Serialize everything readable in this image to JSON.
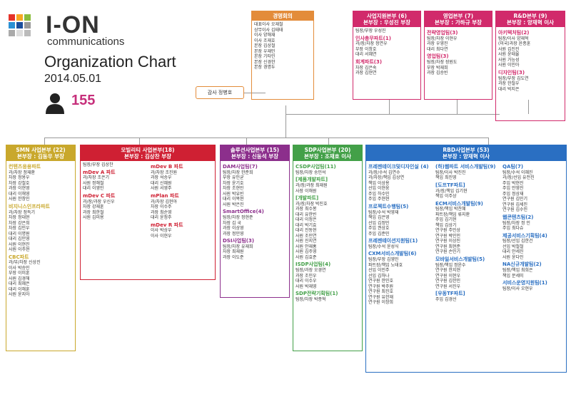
{
  "brand": {
    "name": "I-ON",
    "sub": "communications"
  },
  "title": "Organization Chart",
  "date": "2014.05.01",
  "headcount": "155",
  "colors": {
    "orange": "#e38c3a",
    "pink": "#d12a6b",
    "olive": "#c9a82c",
    "red": "#cf2033",
    "purple": "#8c2f8c",
    "green": "#43a048",
    "blue": "#2a6fc2"
  },
  "ceo": {
    "title": "경영회의",
    "lines": [
      "대표이사 오재철",
      "상무이사 김태태",
      "이사 양해재",
      "이사 조재호",
      "본장 김상철",
      "본장 우재민",
      "본장 기타민",
      "본장 신경한",
      "본장 경명두"
    ]
  },
  "audit": "감사 정병호",
  "support": {
    "title": "사업지원본부 (6)",
    "sub": "본부장 : 우성진 부장",
    "lines": [
      "팀장/부장 우성진",
      "인사총무파트(1)",
      "과/장/차장 정연우",
      "부장 이창호",
      "대리 서혜연",
      "회계파트(3)",
      "차장 김은숙",
      "과장 김현연"
    ]
  },
  "sales": {
    "title": "영업본부 (7)",
    "sub": "본부장 : 가하규 부장",
    "lines": [
      "전략영업팀(3)",
      "팀장/차장 이현우",
      "과장 우영진",
      "대리 최다연",
      "영업팀(3)",
      "팀장/차장 장원도",
      "부장 박재희",
      "과장 김승빈"
    ]
  },
  "rnd": {
    "title": "R&D본부 (9)",
    "sub": "본부장 : 양재혁 이사",
    "lines": [
      "아키텍처팀(2)",
      "팀장/이사 양재혁",
      "(미국)과장 윤종훈",
      "사원 김진진",
      "사원 윤태율",
      "사원 가능성",
      "사원 이민아",
      "디자인팀(3)",
      "팀장/부장 김도연",
      "과장 한철우",
      "대리 박지은"
    ]
  },
  "smn": {
    "title": "SMN 사업본부 (22)",
    "sub": "본부장 : 김동우 부장",
    "lines": [
      "컨텐츠응용파트",
      "과/차장 정재환",
      "차장 정용우",
      "차장 강철호",
      "과장 이현영",
      "대리 이해영",
      "사원 한창민",
      "비지니스인프라파트",
      "과/차장 정득기",
      "차장 정대현",
      "차장 강은희",
      "차장 김민우",
      "대리 이명원",
      "대리 김민영",
      "사원 이현진",
      "사원 이주현",
      "CBC파트",
      "과/부/차장 신상진",
      "이사 박승민",
      "부장 이미훈",
      "사원 김경해",
      "대리 최혜은",
      "대리 이해훈",
      "사원 윤지아"
    ]
  },
  "mobility": {
    "title": "모빌리티 사업본부(18)",
    "sub": "본부장 : 김상찬 부장",
    "c1": [
      "팀장/부장 김상찬",
      "mDev A 파트",
      "과/차장 조은기",
      "사원 정해철",
      "대리 이영민",
      "mDev C 파트",
      "과/장/과장 우신우",
      "차장 강재훈",
      "과장 최한철",
      "사원 김미용"
    ],
    "c2": [
      "mDev B 파트",
      "과/차장 조진원",
      "과장 석승우",
      "대리 신혜원",
      "사원 서영주",
      "mPlan 파트",
      "과/차장 김현아",
      "차장 이수주",
      "과장 최순영",
      "대리 윤정주",
      "mDev R 파트",
      "이사 박상우",
      "이사 이현우"
    ]
  },
  "solution": {
    "title": "솔루션사업본부 (15)",
    "sub": "본부장 : 신동석 부장",
    "lines": [
      "DAM사업팀(7)",
      "팀장/차장 한준희",
      "부장 유인균",
      "차장 윤기호",
      "차장 조현민",
      "사원 박유빈",
      "대리 이목현",
      "사원 박은진",
      "SmartOffice(4)",
      "팀장/차장 정현준",
      "차장 김 국",
      "과장 이상영",
      "과장 정민영",
      "DSI사업팀(3)",
      "팀장/차장 유재희",
      "차장 최재원",
      "과장 이도준"
    ]
  },
  "sdp": {
    "title": "SDP사업본부 (20)",
    "sub": "본부장 : 조재호 이사",
    "lines": [
      "CSDP사업팀(11)",
      "팀장/차장 송민석",
      "[제품개발파트]",
      "과/장/과장 최재원",
      "사장 이해원",
      "[개발파트]",
      "과/장/차장 박진호",
      "과장 최수봉",
      "대리 유한빈",
      "대리 이정은",
      "대리 박기효",
      "대리 진동현",
      "사원 조민연",
      "사원 진지연",
      "사원 안재홍",
      "사원 김주영",
      "사원 김효준",
      "ISDP사업팀(4)",
      "팀장/과장 오경연",
      "과장 조민우",
      "대리 이수우",
      "사원 박재영",
      "SDP전략기획팀(1)",
      "팀장/차장 박종혁"
    ]
  },
  "rbd": {
    "title": "RBD사업본부 (53)",
    "sub": "본부장 : 양재혁 이사",
    "c1": [
      "프레젠테이크및디자인실 (4)",
      "과/장/수석 김연수",
      "과/차장/책임 김상연",
      "책임 이상용",
      "선임 이현웅",
      "주임 하수민",
      "주임 주현현",
      "프로젝트수행팀(5)",
      "팀장/수석 박영재",
      "책임 김은영",
      "선임 김정민",
      "주임 권상호",
      "주임 김준민",
      "프레젠테이션지원팀(1)",
      "팀장/수석 윤성식",
      "CXM서비스개발팀(6)",
      "팀장/부장 김영민",
      "파트장/책임 노태호",
      "선임 이민주",
      "선임 김하나",
      "연구원 한민호",
      "연구원 박주원",
      "연구원 최진호",
      "연구원 유한재",
      "연구원 이창희"
    ],
    "c2": [
      "(하)웹파트 서비스개발팀(9)",
      "팀장/이사 박진진",
      "책임 최진영",
      "[도프TF파트]",
      "과/장/책임 김기현",
      "책임 이주상",
      "ECM서비스개발팀(9)",
      "팀장/책임 박찬혜",
      "파트장/책임 류지환",
      "주임 김기현",
      "책임 김상기",
      "연구원 주민상",
      "연구원 박민민",
      "연구원 이상진",
      "연구원 최현준",
      "연구원 손민기",
      "모바일서비스개발팀(5)",
      "팀장/책임 정윤수",
      "연구원 한지현",
      "연구원 이현우",
      "연구원 김한민",
      "연구원 서진우",
      "[우동TF파트]",
      "주임 김경선"
    ],
    "c3": [
      "QA팀(7)",
      "팀장/수석 이혜진",
      "과/장/선임 유전진",
      "주임 박현진",
      "주임 안영진",
      "주임 정상재",
      "연구원 김민기",
      "연구원 김세진",
      "연구원 김수민",
      "웹콘텐츠팀(2)",
      "팀장/차장 정 인",
      "주임 최다슈",
      "제공서비스기획팀(4)",
      "팀장/선임 김한건",
      "선임 박철철",
      "대리 안세진",
      "사원 윤다인",
      "NA신규개발팀(2)",
      "팀장/책임 최희은",
      "책임 문세미",
      "서비스운영지원팀(1)",
      "팀장/이사 오현우"
    ]
  }
}
